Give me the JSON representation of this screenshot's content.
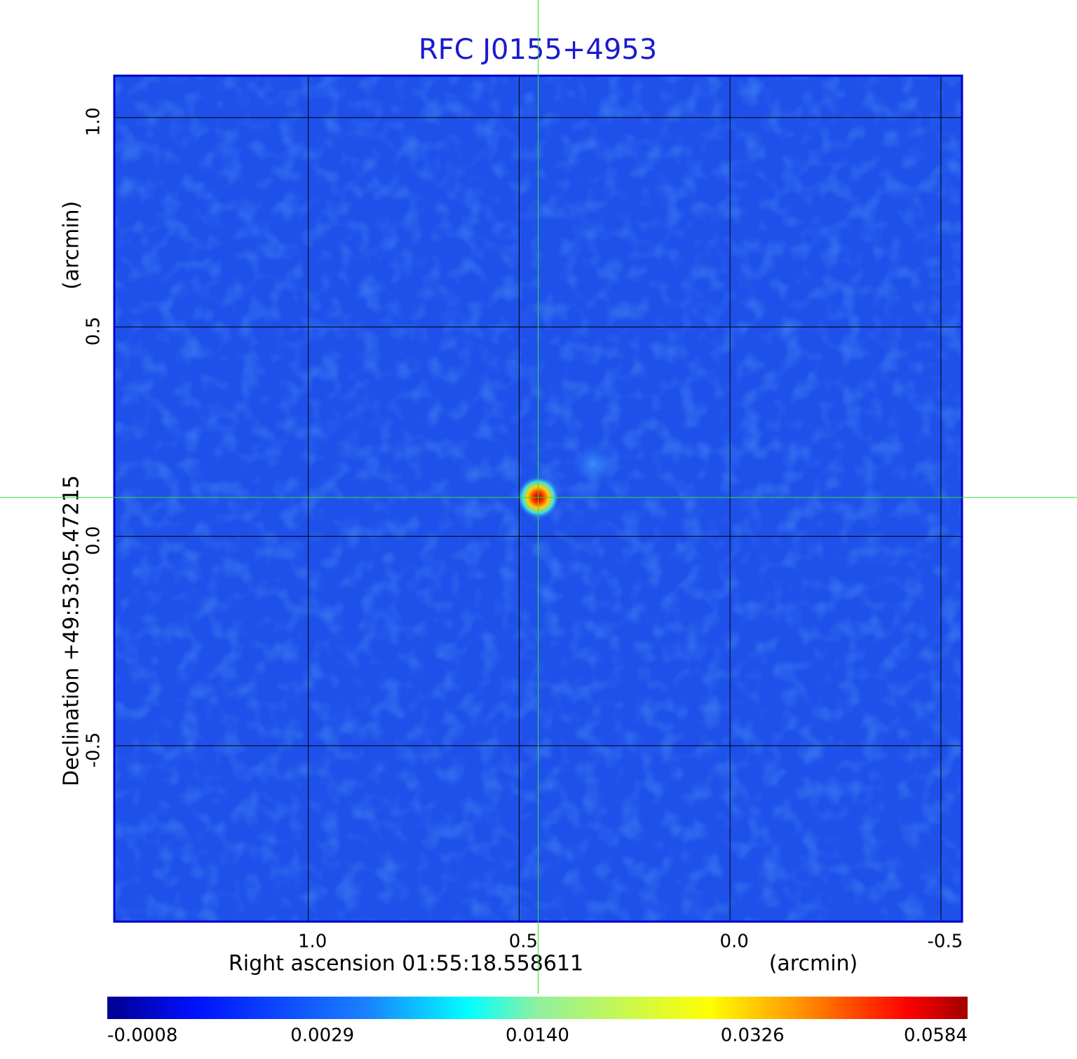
{
  "chart_data": {
    "type": "image",
    "title": "RFC J0155+4953",
    "xlabel": "Right ascension  01:55:18.558611",
    "xunit": "(arcmin)",
    "ylabel": "Declination  +49:53:05.47215",
    "yunit": "(arcmin)",
    "xlim": [
      1.46,
      -0.55
    ],
    "ylim": [
      -0.92,
      1.1
    ],
    "xticks": [
      {
        "value": 1.0,
        "label": "1.0"
      },
      {
        "value": 0.5,
        "label": "0.5"
      },
      {
        "value": 0.0,
        "label": "0.0"
      },
      {
        "value": -0.5,
        "label": "-0.5"
      }
    ],
    "yticks": [
      {
        "value": 1.0,
        "label": "1.0"
      },
      {
        "value": 0.5,
        "label": "0.5"
      },
      {
        "value": 0.0,
        "label": "0.0"
      },
      {
        "value": -0.5,
        "label": "-0.5"
      }
    ],
    "grid": true,
    "crosshair": [
      0.455,
      0.093
    ],
    "colorbar": {
      "lim": [
        -0.0008,
        0.0584
      ],
      "ticks": [
        -0.0008,
        0.0029,
        {
          "value": 0.014,
          "label": "0.0140"
        },
        0.0326,
        0.0584
      ]
    }
  }
}
